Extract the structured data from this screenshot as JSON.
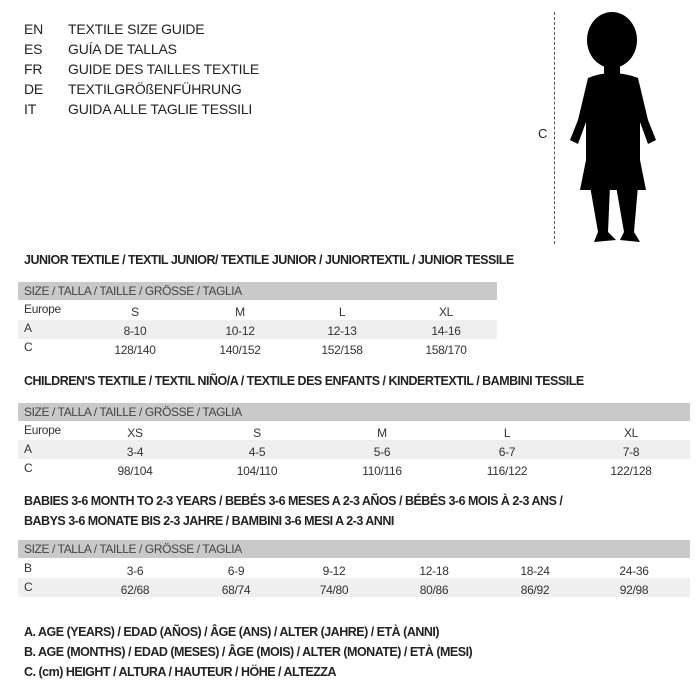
{
  "languages": [
    {
      "code": "EN",
      "text": "TEXTILE SIZE GUIDE"
    },
    {
      "code": "ES",
      "text": "GUÍA DE TALLAS"
    },
    {
      "code": "FR",
      "text": "GUIDE DES TAILLES TEXTILE"
    },
    {
      "code": "DE",
      "text": "TEXTILGRÖßENFÜHRUNG"
    },
    {
      "code": "IT",
      "text": "GUIDA ALLE TAGLIE TESSILI"
    }
  ],
  "figure": {
    "measure_label": "C",
    "icon": "child-silhouette-icon"
  },
  "junior": {
    "title": "JUNIOR TEXTILE / TEXTIL JUNIOR/ TEXTILE JUNIOR / JUNIORTEXTIL / JUNIOR TESSILE",
    "header": "SIZE / TALLA / TAILLE / GRÖSSE / TAGLIA",
    "rows": [
      {
        "label": "Europe",
        "values": [
          "S",
          "M",
          "L",
          "XL"
        ]
      },
      {
        "label": "A",
        "values": [
          "8-10",
          "10-12",
          "12-13",
          "14-16"
        ]
      },
      {
        "label": "C",
        "values": [
          "128/140",
          "140/152",
          "152/158",
          "158/170"
        ]
      }
    ]
  },
  "children": {
    "title": "CHILDREN'S TEXTILE / TEXTIL NIÑO/A / TEXTILE DES ENFANTS / KINDERTEXTIL / BAMBINI TESSILE",
    "header": "SIZE / TALLA / TAILLE / GRÖSSE / TAGLIA",
    "rows": [
      {
        "label": "Europe",
        "values": [
          "XS",
          "S",
          "M",
          "L",
          "XL"
        ]
      },
      {
        "label": "A",
        "values": [
          "3-4",
          "4-5",
          "5-6",
          "6-7",
          "7-8"
        ]
      },
      {
        "label": "C",
        "values": [
          "98/104",
          "104/110",
          "110/116",
          "116/122",
          "122/128"
        ]
      }
    ]
  },
  "babies": {
    "title_line1": "BABIES 3-6 MONTH TO 2-3 YEARS / BEBÉS 3-6 MESES A 2-3 AÑOS / BÉBÉS 3-6 MOIS À 2-3 ANS /",
    "title_line2": "BABYS 3-6 MONATE BIS 2-3 JAHRE / BAMBINI 3-6 MESI A 2-3 ANNI",
    "header": "SIZE / TALLA / TAILLE / GRÖSSE / TAGLIA",
    "rows": [
      {
        "label": "B",
        "values": [
          "3-6",
          "6-9",
          "9-12",
          "12-18",
          "18-24",
          "24-36"
        ]
      },
      {
        "label": "C",
        "values": [
          "62/68",
          "68/74",
          "74/80",
          "80/86",
          "86/92",
          "92/98"
        ]
      }
    ]
  },
  "legend": [
    "A. AGE (YEARS) / EDAD (AÑOS) / ÂGE (ANS) / ALTER (JAHRE) / ETÀ (ANNI)",
    "B. AGE (MONTHS) / EDAD (MESES) / ÂGE (MOIS) / ALTER (MONATE) / ETÀ (MESI)",
    "C. (cm) HEIGHT / ALTURA / HAUTEUR / HÖHE / ALTEZZA"
  ]
}
